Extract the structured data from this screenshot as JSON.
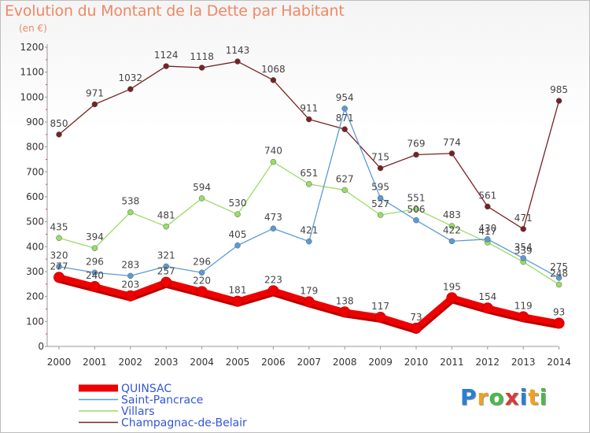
{
  "title": "Evolution du Montant de la Dette par Habitant",
  "subtitle": "(en €)",
  "logo": {
    "text": "Proxiti",
    "letters": [
      {
        "ch": "P",
        "color": "#2a7fd4"
      },
      {
        "ch": "r",
        "color": "#f0a020"
      },
      {
        "ch": "o",
        "color": "#4ab84a"
      },
      {
        "ch": "x",
        "color": "#d83a3a"
      },
      {
        "ch": "i",
        "color": "#2a7fd4"
      },
      {
        "ch": "t",
        "color": "#f0a020"
      },
      {
        "ch": "i",
        "color": "#4ab84a"
      }
    ]
  },
  "chart_data": {
    "type": "line",
    "title": "Evolution du Montant de la Dette par Habitant",
    "xlabel": "",
    "ylabel": "(en €)",
    "x": [
      "2000",
      "2001",
      "2002",
      "2003",
      "2004",
      "2005",
      "2006",
      "2007",
      "2008",
      "2009",
      "2010",
      "2011",
      "2012",
      "2013",
      "2014"
    ],
    "ylim": [
      0,
      1200
    ],
    "yticks": [
      0,
      100,
      200,
      300,
      400,
      500,
      600,
      700,
      800,
      900,
      1000,
      1100,
      1200
    ],
    "grid": false,
    "legend": "bottom-left",
    "series": [
      {
        "name": "QUINSAC",
        "color": "#ee0000",
        "bold": true,
        "values": [
          277,
          240,
          203,
          257,
          220,
          181,
          223,
          179,
          138,
          117,
          73,
          195,
          154,
          119,
          93
        ]
      },
      {
        "name": "Saint-Pancrace",
        "color": "#5b9bd5",
        "bold": false,
        "values": [
          320,
          296,
          283,
          321,
          296,
          405,
          473,
          421,
          954,
          595,
          506,
          422,
          430,
          354,
          275
        ]
      },
      {
        "name": "Villars",
        "color": "#99dd66",
        "bold": false,
        "values": [
          435,
          394,
          538,
          481,
          594,
          530,
          740,
          651,
          627,
          527,
          551,
          483,
          417,
          339,
          248
        ]
      },
      {
        "name": "Champagnac-de-Belair",
        "color": "#772222",
        "bold": false,
        "values": [
          850,
          971,
          1032,
          1124,
          1118,
          1143,
          1068,
          911,
          871,
          715,
          769,
          774,
          561,
          471,
          985
        ]
      }
    ]
  }
}
